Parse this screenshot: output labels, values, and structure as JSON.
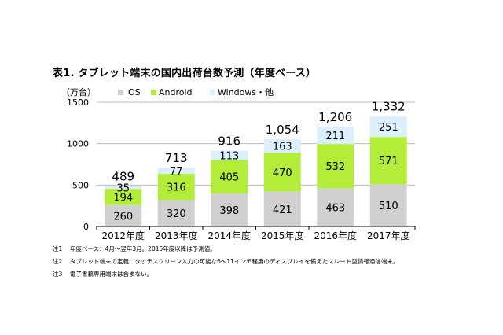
{
  "title": "表1. タブレット端末の国内出荷台数予測（年度ベース）",
  "notes": [
    {
      "num": "注1",
      "text": "年度ベース：4月～翌年3月。2015年度以降は予測値。"
    },
    {
      "num": "注2",
      "text": "タブレット端末の定義：タッチスクリーン入力の可能な6～11インチ程度のディスプレイを備えたスレート型情報通信端末。"
    },
    {
      "num": "注3",
      "text": "電子書籍専用端末は含まない。"
    }
  ],
  "chart_data": {
    "type": "bar",
    "stacked": true,
    "unit_label": "（万台）",
    "categories": [
      "2012年度",
      "2013年度",
      "2014年度",
      "2015年度",
      "2016年度",
      "2017年度"
    ],
    "series": [
      {
        "name": "iOS",
        "color": "#d0d0d0",
        "values": [
          260,
          320,
          398,
          421,
          463,
          510
        ]
      },
      {
        "name": "Android",
        "color": "#b4ec3a",
        "values": [
          194,
          316,
          405,
          470,
          532,
          571
        ]
      },
      {
        "name": "Windows・他",
        "color": "#dcefff",
        "values": [
          35,
          77,
          113,
          163,
          211,
          251
        ]
      }
    ],
    "totals": [
      "489",
      "713",
      "916",
      "1,054",
      "1,206",
      "1,332"
    ],
    "ylim": [
      0,
      1500
    ],
    "yticks": [
      0,
      500,
      1000,
      1500
    ],
    "grid": true,
    "legend_position": "top"
  }
}
